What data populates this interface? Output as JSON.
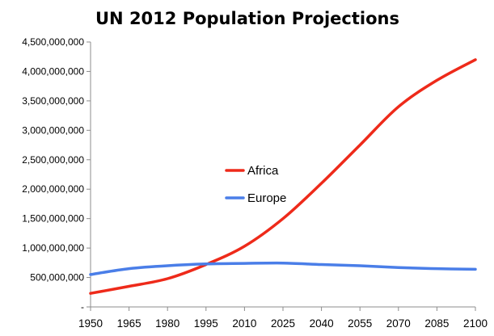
{
  "chart_data": {
    "type": "line",
    "title": "UN 2012 Population Projections",
    "xlabel": "",
    "ylabel": "",
    "x": [
      1950,
      1965,
      1980,
      1995,
      2010,
      2025,
      2040,
      2055,
      2070,
      2085,
      2100
    ],
    "xlim": [
      1950,
      2100
    ],
    "ylim": [
      0,
      4500000000
    ],
    "y_ticks": [
      {
        "value": 0,
        "label": "-"
      },
      {
        "value": 500000000,
        "label": "500,000,000"
      },
      {
        "value": 1000000000,
        "label": "1,000,000,000"
      },
      {
        "value": 1500000000,
        "label": "1,500,000,000"
      },
      {
        "value": 2000000000,
        "label": "2,000,000,000"
      },
      {
        "value": 2500000000,
        "label": "2,500,000,000"
      },
      {
        "value": 3000000000,
        "label": "3,000,000,000"
      },
      {
        "value": 3500000000,
        "label": "3,500,000,000"
      },
      {
        "value": 4000000000,
        "label": "4,000,000,000"
      },
      {
        "value": 4500000000,
        "label": "4,500,000,000"
      }
    ],
    "x_tick_labels": [
      "1950",
      "1965",
      "1980",
      "1995",
      "2010",
      "2025",
      "2040",
      "2055",
      "2070",
      "2085",
      "2100"
    ],
    "grid": false,
    "legend_position": "center",
    "series": [
      {
        "name": "Africa",
        "color": "#ee2a1a",
        "values": [
          230000000,
          350000000,
          480000000,
          720000000,
          1030000000,
          1500000000,
          2100000000,
          2750000000,
          3400000000,
          3850000000,
          4200000000
        ]
      },
      {
        "name": "Europe",
        "color": "#4a7ee8",
        "values": [
          550000000,
          650000000,
          700000000,
          730000000,
          740000000,
          745000000,
          720000000,
          700000000,
          670000000,
          650000000,
          640000000
        ]
      }
    ]
  }
}
